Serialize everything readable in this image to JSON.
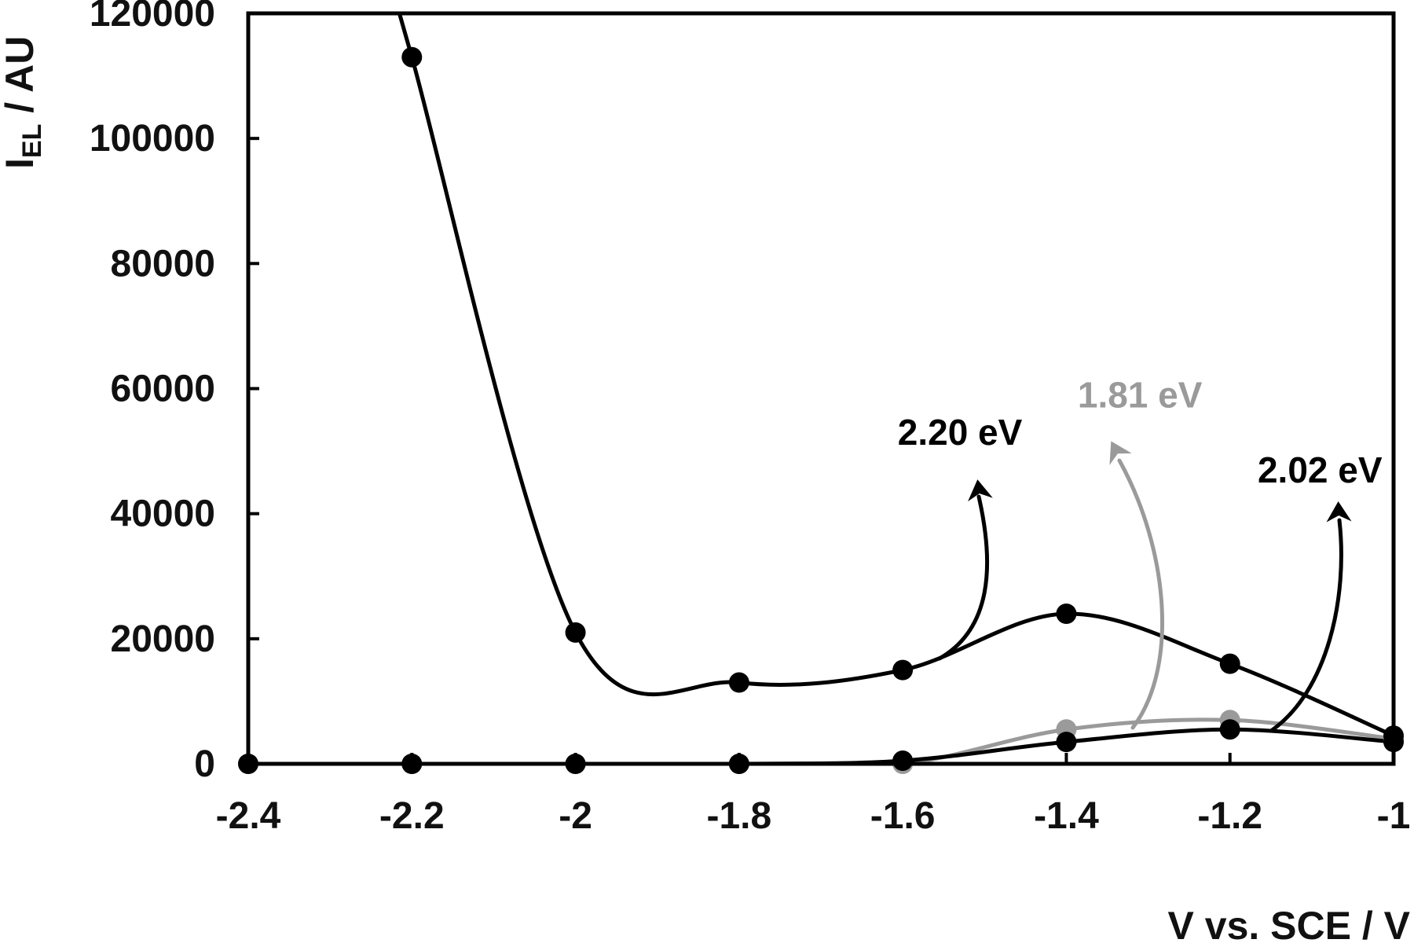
{
  "chart_data": {
    "type": "line",
    "title": "",
    "xlabel": "V vs. SCE / V",
    "ylabel_main": "I",
    "ylabel_sub": "EL",
    "ylabel_rest": " / AU",
    "xlim": [
      -2.4,
      -1.0
    ],
    "ylim": [
      0,
      120000
    ],
    "x_ticks": [
      -2.4,
      -2.2,
      -2.0,
      -1.8,
      -1.6,
      -1.4,
      -1.2,
      -1.0
    ],
    "x_tick_labels": [
      "-2.4",
      "-2.2",
      "-2",
      "-1.8",
      "-1.6",
      "-1.4",
      "-1.2",
      "-1"
    ],
    "y_ticks": [
      0,
      20000,
      40000,
      60000,
      80000,
      100000,
      120000
    ],
    "y_tick_labels": [
      "0",
      "20000",
      "40000",
      "60000",
      "80000",
      "100000",
      "120000"
    ],
    "grid": false,
    "series": [
      {
        "key": "s220",
        "color": "#000000",
        "x": [
          -2.2,
          -2.0,
          -1.8,
          -1.6,
          -1.4,
          -1.2,
          -1.0
        ],
        "y": [
          113000,
          21000,
          13000,
          15000,
          24000,
          16000,
          4500
        ]
      },
      {
        "key": "s181",
        "color": "#9a9a9a",
        "x": [
          -2.4,
          -2.2,
          -2.0,
          -1.8,
          -1.6,
          -1.4,
          -1.2,
          -1.0
        ],
        "y": [
          0,
          0,
          0,
          0,
          0,
          5500,
          7000,
          4000
        ]
      },
      {
        "key": "s202",
        "color": "#000000",
        "x": [
          -2.4,
          -2.2,
          -2.0,
          -1.8,
          -1.6,
          -1.4,
          -1.2,
          -1.0
        ],
        "y": [
          0,
          0,
          0,
          0,
          500,
          3500,
          5500,
          3500
        ]
      }
    ],
    "annotations": [
      {
        "text": "2.20 eV",
        "color": "#000000",
        "x": -1.53,
        "y": 51000
      },
      {
        "text": "1.81 eV",
        "color": "#9a9a9a",
        "x": -1.31,
        "y": 57000
      },
      {
        "text": "2.02 eV",
        "color": "#000000",
        "x": -1.09,
        "y": 45000
      }
    ]
  }
}
